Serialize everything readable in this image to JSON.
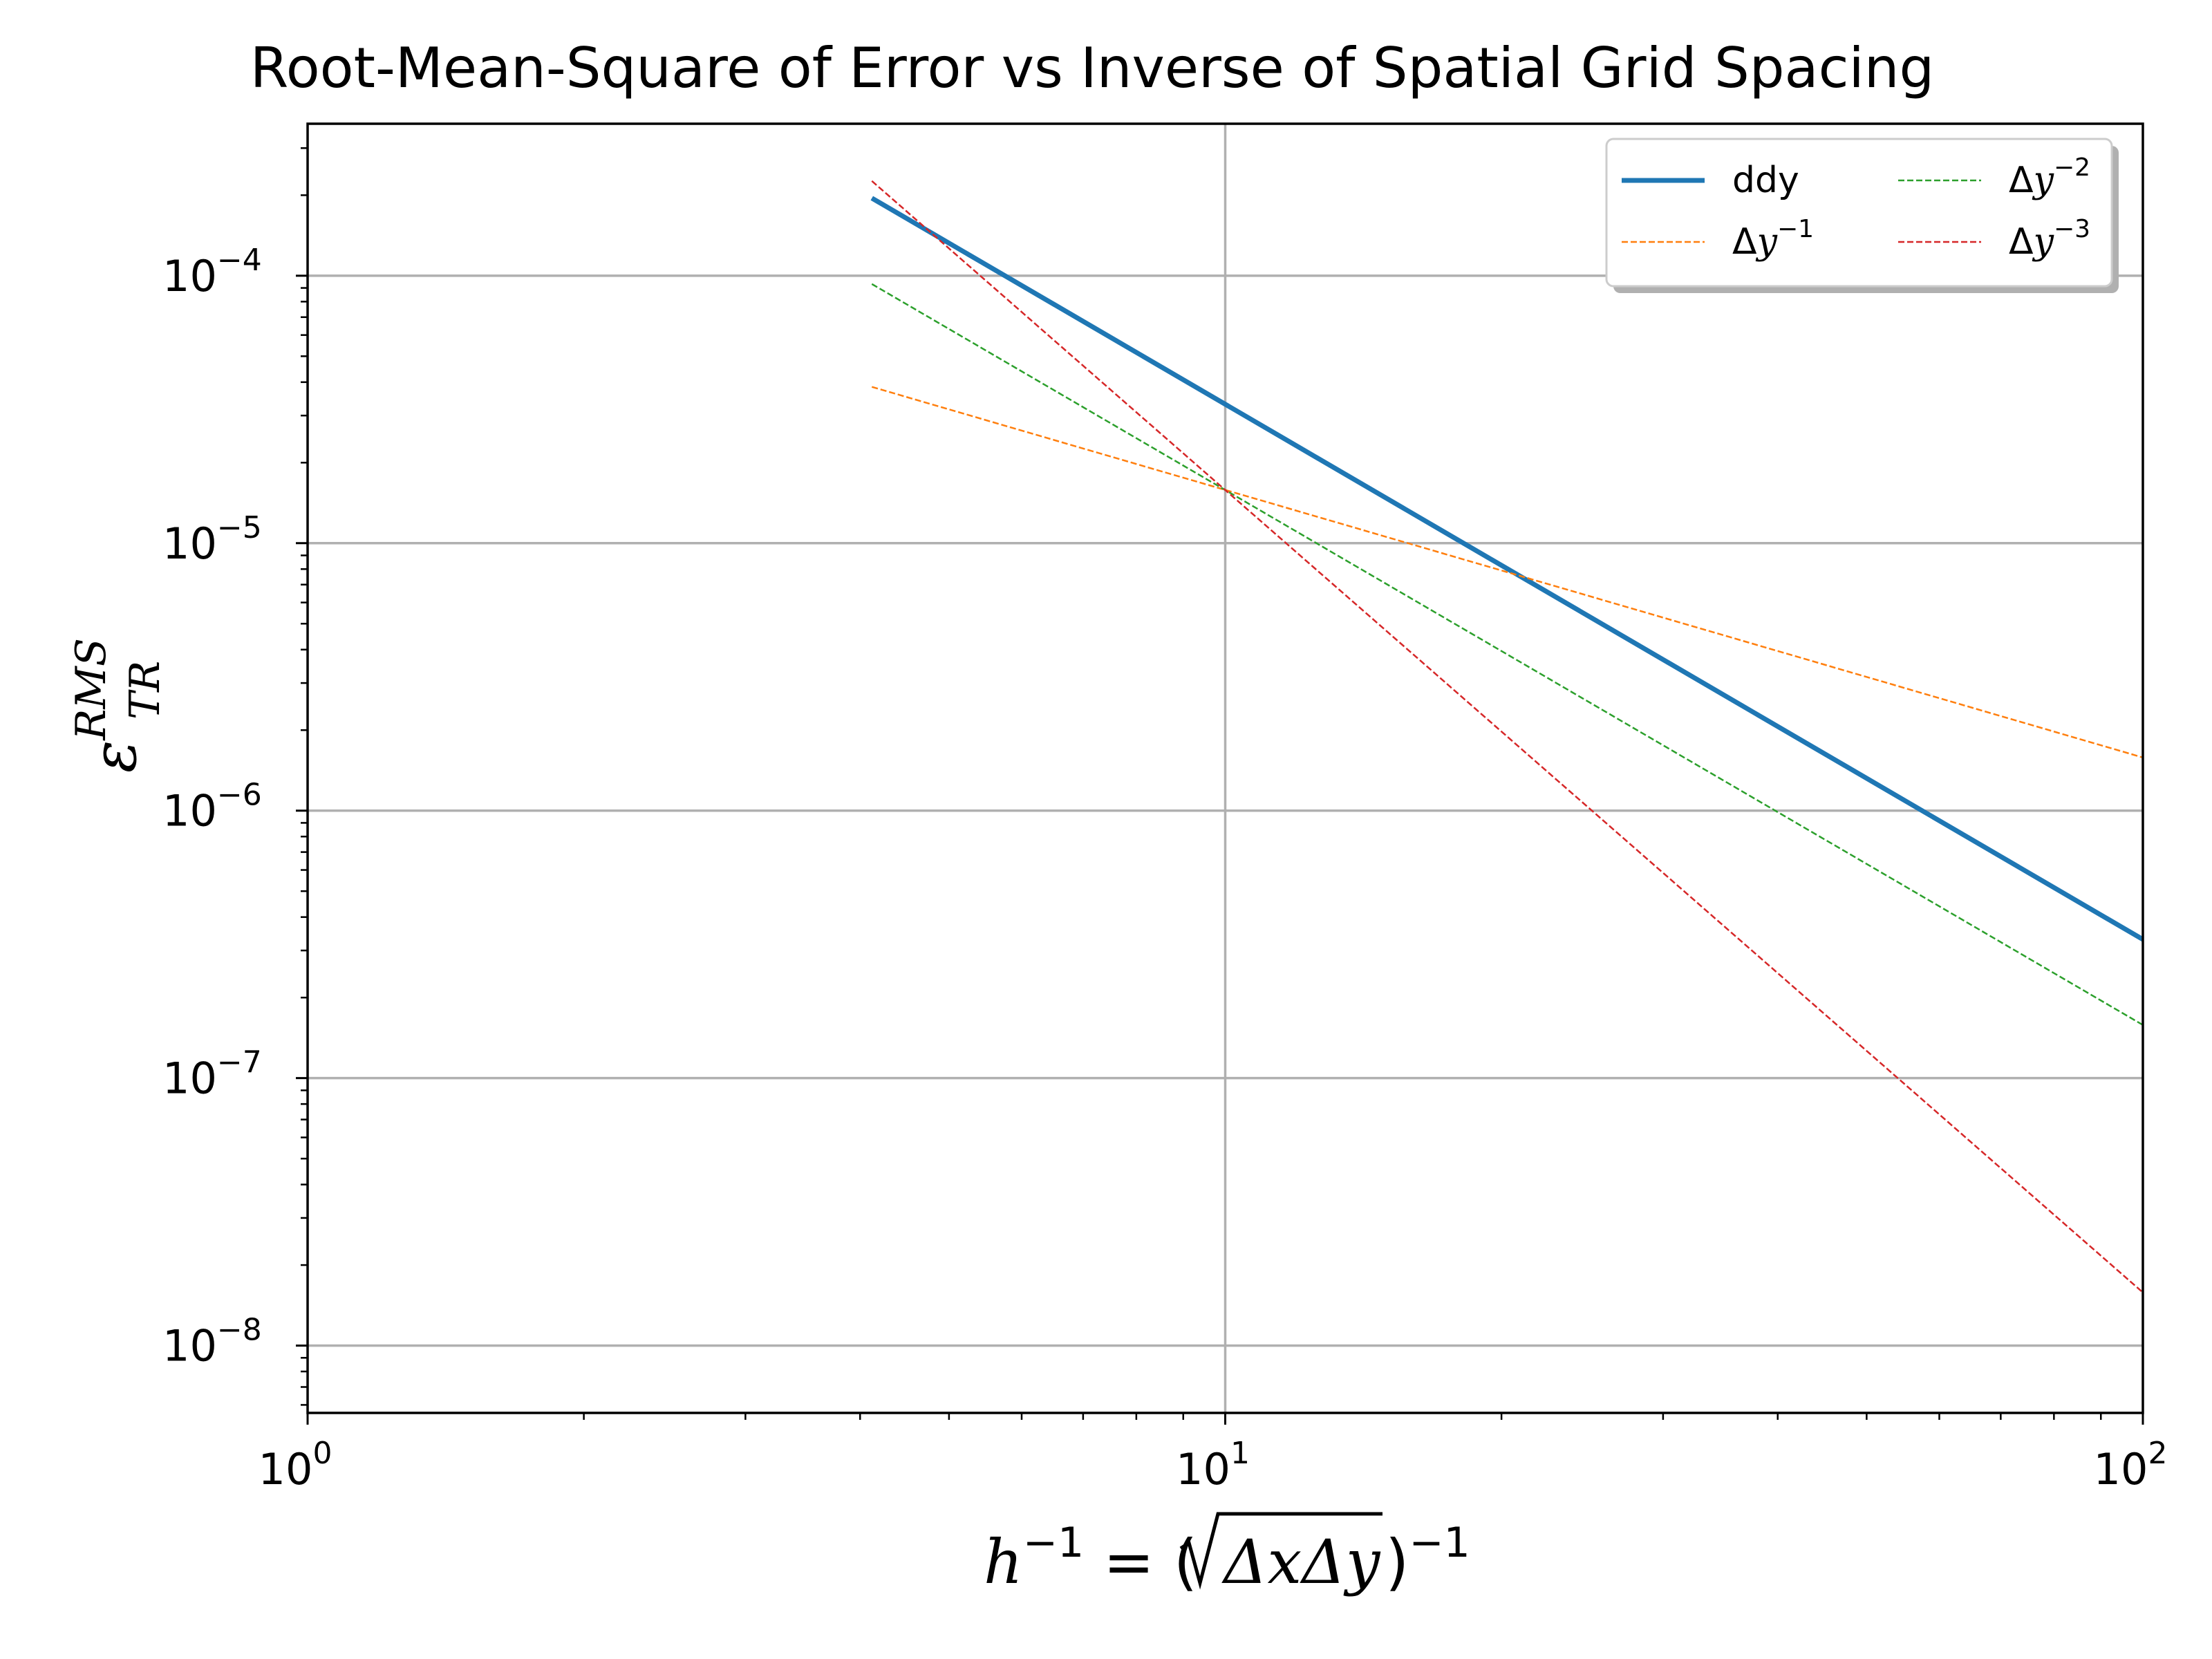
{
  "chart_data": {
    "type": "line",
    "title": "Root-Mean-Square of Error vs Inverse of Spatial Grid Spacing",
    "xscale": "log",
    "yscale": "log",
    "xlim": [
      1,
      100
    ],
    "ylim": [
      5.6e-09,
      0.00037
    ],
    "grid": "major",
    "xlabel": {
      "h": "h",
      "sup1": "−1",
      "eq": " = (",
      "rad": "ΔxΔy",
      "close": ")",
      "sup2": "−1"
    },
    "ylabel": {
      "base": "ε",
      "sup": "RMS",
      "sub": "TR"
    },
    "x_ticks": [
      {
        "value": 1,
        "base": "10",
        "exp": "0"
      },
      {
        "value": 10,
        "base": "10",
        "exp": "1"
      },
      {
        "value": 100,
        "base": "10",
        "exp": "2"
      }
    ],
    "y_ticks": [
      {
        "value": 0.0001,
        "base": "10",
        "exp": "−4"
      },
      {
        "value": 1e-05,
        "base": "10",
        "exp": "−5"
      },
      {
        "value": 1e-06,
        "base": "10",
        "exp": "−6"
      },
      {
        "value": 1e-07,
        "base": "10",
        "exp": "−7"
      },
      {
        "value": 1e-08,
        "base": "10",
        "exp": "−8"
      }
    ],
    "legend_position": "top-right",
    "series": [
      {
        "name": "ddy",
        "label": {
          "text": "ddy"
        },
        "color": "#1f77b4",
        "style": "solid",
        "x": [
          4.12,
          100
        ],
        "y": [
          0.000195,
          3.3e-07
        ]
      },
      {
        "name": "dy-1",
        "label": {
          "prefix": "Δ",
          "var": "y",
          "sup": "−1"
        },
        "color": "#ff7f0e",
        "style": "dashed",
        "x": [
          4.12,
          100
        ],
        "y": [
          3.84e-05,
          1.58e-06
        ]
      },
      {
        "name": "dy-2",
        "label": {
          "prefix": "Δ",
          "var": "y",
          "sup": "−2"
        },
        "color": "#2ca02c",
        "style": "dashed",
        "x": [
          4.12,
          100
        ],
        "y": [
          9.31e-05,
          1.58e-07
        ]
      },
      {
        "name": "dy-3",
        "label": {
          "prefix": "Δ",
          "var": "y",
          "sup": "−3"
        },
        "color": "#d62728",
        "style": "dashed",
        "x": [
          4.12,
          100
        ],
        "y": [
          0.000226,
          1.58e-08
        ]
      }
    ]
  }
}
